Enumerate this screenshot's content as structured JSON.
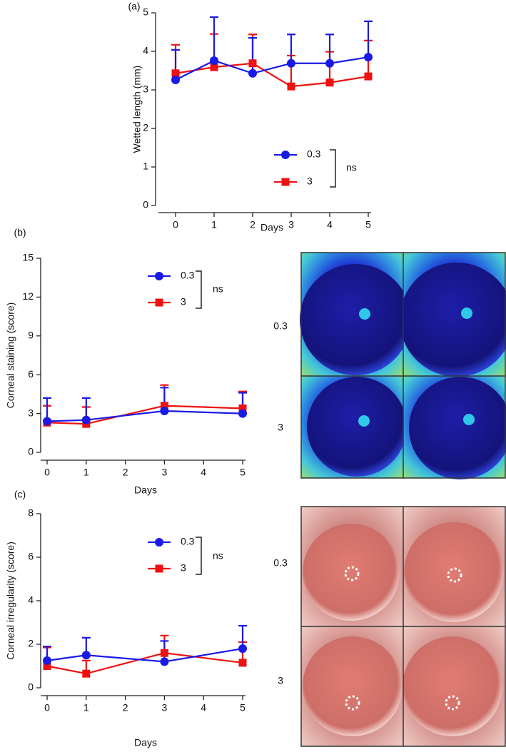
{
  "chart_data": [
    {
      "type": "line",
      "panel_label": "(a)",
      "x_label": "Days",
      "y_label": "Wetted length (mm)",
      "annotation": "ns",
      "x": [
        0,
        1,
        2,
        3,
        4,
        5
      ],
      "xlim": [
        0,
        5
      ],
      "xticks": [
        0,
        1,
        2,
        3,
        4,
        5
      ],
      "ylim": [
        0,
        5
      ],
      "yticks": [
        0,
        1,
        2,
        3,
        4,
        5
      ],
      "series": [
        {
          "name": "0.3",
          "color": "#1a1ae6",
          "marker": "circle",
          "values": [
            3.26,
            3.76,
            3.43,
            3.69,
            3.69,
            3.85
          ],
          "errors": [
            0.78,
            1.13,
            0.92,
            0.75,
            0.75,
            0.93
          ]
        },
        {
          "name": "3",
          "color": "#ee1111",
          "marker": "square",
          "values": [
            3.43,
            3.59,
            3.69,
            3.09,
            3.19,
            3.35
          ],
          "errors": [
            0.74,
            0.86,
            0.75,
            0.8,
            0.8,
            0.93
          ]
        }
      ]
    },
    {
      "type": "line",
      "panel_label": "(b)",
      "x_label": "Days",
      "y_label": "Corneal staining (score)",
      "annotation": "ns",
      "x": [
        0,
        1,
        3,
        5
      ],
      "xlim": [
        0,
        5
      ],
      "xticks": [
        0,
        1,
        2,
        3,
        4,
        5
      ],
      "ylim": [
        0,
        15
      ],
      "yticks": [
        0,
        3,
        6,
        9,
        12,
        15
      ],
      "series": [
        {
          "name": "0.3",
          "color": "#1a1ae6",
          "marker": "circle",
          "values": [
            2.4,
            2.5,
            3.2,
            3.0
          ],
          "errors": [
            1.8,
            1.7,
            1.8,
            1.6
          ]
        },
        {
          "name": "3",
          "color": "#ee1111",
          "marker": "square",
          "values": [
            2.3,
            2.2,
            3.6,
            3.4
          ],
          "errors": [
            1.3,
            1.3,
            1.6,
            1.3
          ]
        }
      ]
    },
    {
      "type": "line",
      "panel_label": "(c)",
      "x_label": "Days",
      "y_label": "Corneal irregularity (score)",
      "annotation": "ns",
      "x": [
        0,
        1,
        3,
        5
      ],
      "xlim": [
        0,
        5
      ],
      "xticks": [
        0,
        1,
        2,
        3,
        4,
        5
      ],
      "ylim": [
        0,
        8
      ],
      "yticks": [
        0,
        2,
        4,
        6,
        8
      ],
      "series": [
        {
          "name": "0.3",
          "color": "#1a1ae6",
          "marker": "circle",
          "values": [
            1.25,
            1.5,
            1.2,
            1.8
          ],
          "errors": [
            0.65,
            0.8,
            0.95,
            1.05
          ]
        },
        {
          "name": "3",
          "color": "#ee1111",
          "marker": "square",
          "values": [
            1.0,
            0.65,
            1.6,
            1.15
          ],
          "errors": [
            0.85,
            0.6,
            0.8,
            0.95
          ]
        }
      ]
    }
  ],
  "image_panels": [
    {
      "row_labels": [
        "0.3",
        "3"
      ]
    },
    {
      "row_labels": [
        "0.3",
        "3"
      ]
    }
  ]
}
